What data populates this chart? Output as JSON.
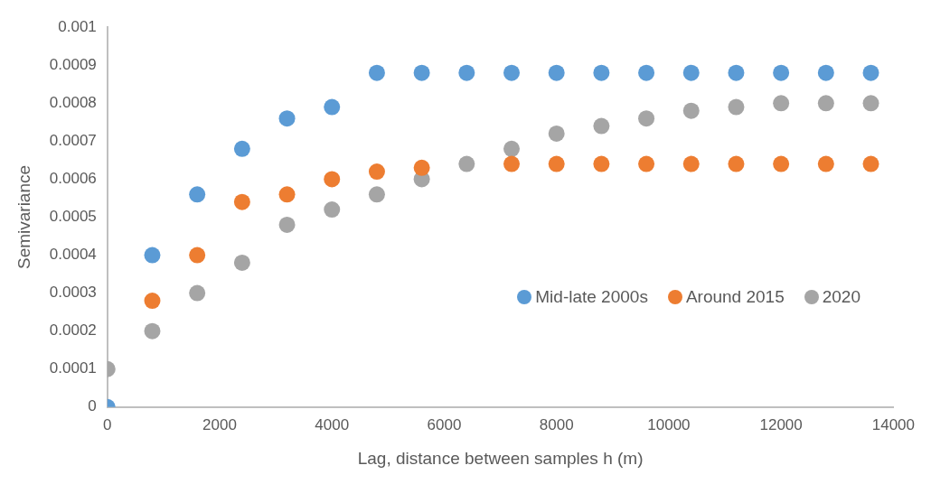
{
  "chart_data": {
    "type": "scatter",
    "xlabel": "Lag, distance between samples h (m)",
    "ylabel": "Semivariance",
    "x": [
      0,
      800,
      1600,
      2400,
      3200,
      4000,
      4800,
      5600,
      6400,
      7200,
      8000,
      8800,
      9600,
      10400,
      11200,
      12000,
      12800,
      13600
    ],
    "series": [
      {
        "name": "Mid-late 2000s",
        "color": "#5b9bd5",
        "values": [
          0,
          0.0004,
          0.00056,
          0.00068,
          0.00076,
          0.00079,
          0.00088,
          0.00088,
          0.00088,
          0.00088,
          0.00088,
          0.00088,
          0.00088,
          0.00088,
          0.00088,
          0.00088,
          0.00088,
          0.00088
        ]
      },
      {
        "name": "Around 2015",
        "color": "#ed7d31",
        "values": [
          null,
          0.00028,
          0.0004,
          0.00054,
          0.00056,
          0.0006,
          0.00062,
          0.00063,
          null,
          0.00064,
          0.00064,
          0.00064,
          0.00064,
          0.00064,
          0.00064,
          0.00064,
          0.00064,
          0.00064
        ]
      },
      {
        "name": "2020",
        "color": "#a5a5a5",
        "values": [
          0.0001,
          0.0002,
          0.0003,
          0.00038,
          0.00048,
          0.00052,
          0.00056,
          0.0006,
          0.00064,
          0.00068,
          0.00072,
          0.00074,
          0.00076,
          0.00078,
          0.00079,
          0.0008,
          0.0008,
          0.0008
        ]
      }
    ],
    "xlim": [
      0,
      14000
    ],
    "xticks": [
      0,
      2000,
      4000,
      6000,
      8000,
      10000,
      12000,
      14000
    ],
    "ylim": [
      0,
      0.001
    ],
    "yticks": [
      0,
      0.0001,
      0.0002,
      0.0003,
      0.0004,
      0.0005,
      0.0006,
      0.0007,
      0.0008,
      0.0009,
      0.001
    ],
    "grid": false,
    "legend": "right",
    "marker": "circle"
  }
}
